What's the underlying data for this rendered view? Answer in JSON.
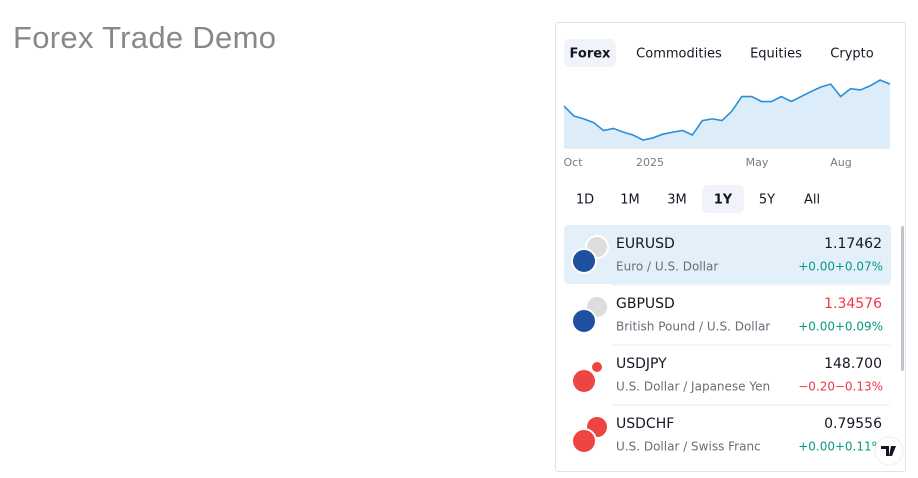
{
  "page_title": "Forex Trade Demo",
  "tabs": [
    "Forex",
    "Commodities",
    "Equities",
    "Crypto"
  ],
  "selected_tab": 0,
  "chart": {
    "type": "line",
    "x_labels": [
      "Oct",
      "2025",
      "May",
      "Aug"
    ],
    "color": "#2a8fd6",
    "values": [
      1.112,
      1.088,
      1.081,
      1.072,
      1.053,
      1.058,
      1.049,
      1.042,
      1.03,
      1.035,
      1.044,
      1.049,
      1.053,
      1.042,
      1.077,
      1.081,
      1.077,
      1.1,
      1.135,
      1.135,
      1.123,
      1.123,
      1.135,
      1.123,
      1.135,
      1.147,
      1.158,
      1.165,
      1.135,
      1.154,
      1.151,
      1.161,
      1.175,
      1.165
    ]
  },
  "ranges": [
    "1D",
    "1M",
    "3M",
    "1Y",
    "5Y",
    "All"
  ],
  "selected_range": 3,
  "rows": [
    {
      "symbol": "EURUSD",
      "description": "Euro / U.S. Dollar",
      "price": "1.17462",
      "change": "+0.00",
      "change_pct": "+0.07%",
      "price_color": "#131722",
      "change_color": "#089981",
      "highlight": true
    },
    {
      "symbol": "GBPUSD",
      "description": "British Pound / U.S. Dollar",
      "price": "1.34576",
      "change": "+0.00",
      "change_pct": "+0.09%",
      "price_color": "#f23645",
      "change_color": "#089981",
      "highlight": false
    },
    {
      "symbol": "USDJPY",
      "description": "U.S. Dollar / Japanese Yen",
      "price": "148.700",
      "change": "−0.20",
      "change_pct": "−0.13%",
      "price_color": "#131722",
      "change_color": "#f23645",
      "highlight": false
    },
    {
      "symbol": "USDCHF",
      "description": "U.S. Dollar / Swiss Franc",
      "price": "0.79556",
      "change": "+0.00",
      "change_pct": "+0.11%",
      "price_color": "#131722",
      "change_color": "#089981",
      "highlight": false
    }
  ]
}
